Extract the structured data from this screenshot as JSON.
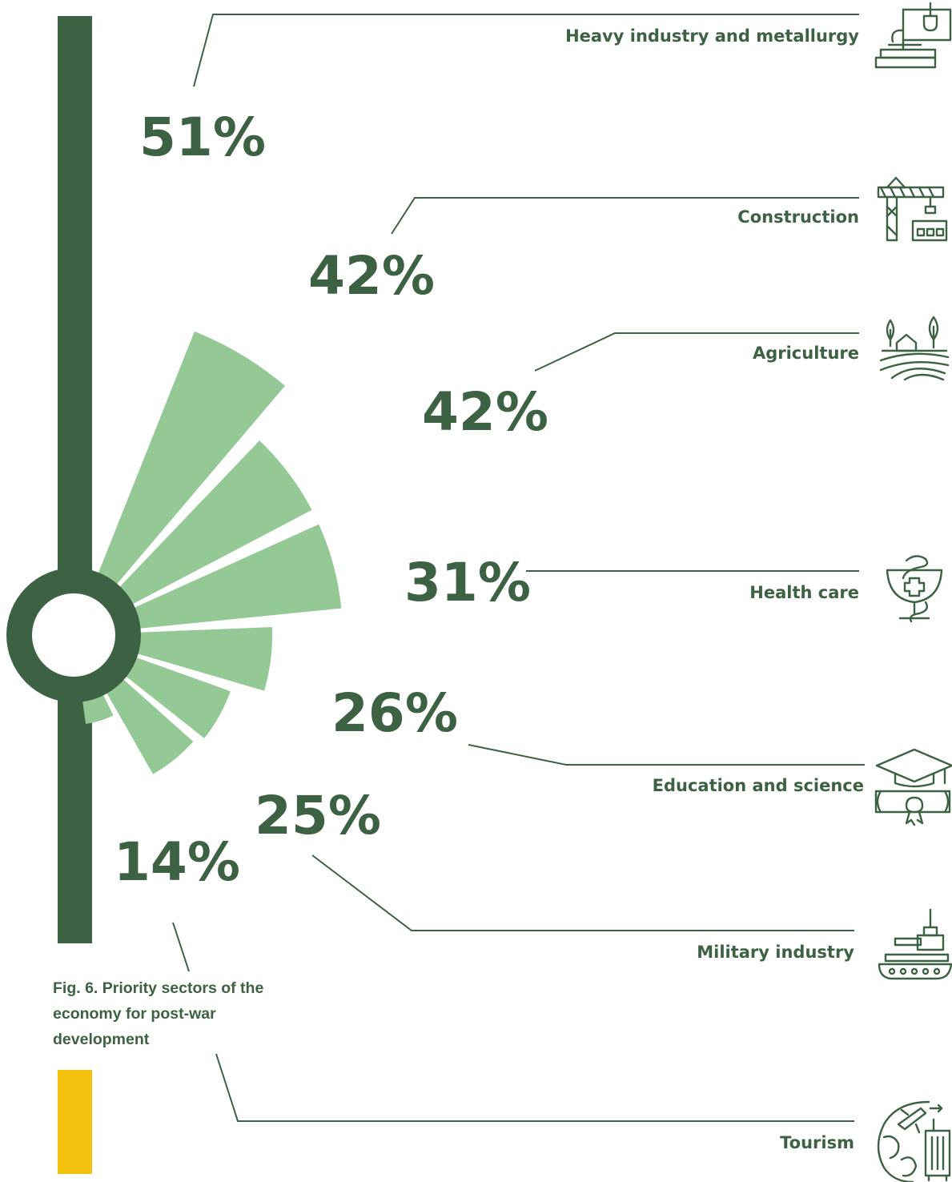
{
  "chart_data": {
    "type": "radial-bar",
    "unit": "%",
    "categories": [
      "Heavy industry and metallurgy",
      "Construction",
      "Agriculture",
      "Health care",
      "Education and science",
      "Military industry",
      "Tourism"
    ],
    "values": [
      51,
      42,
      42,
      31,
      26,
      25,
      14
    ],
    "labels": [
      "51%",
      "42%",
      "42%",
      "31%",
      "26%",
      "25%",
      "14%"
    ],
    "icons": [
      "industry-icon",
      "construction-crane-icon",
      "farm-icon",
      "medical-bowl-icon",
      "graduation-diploma-icon",
      "tank-icon",
      "travel-globe-icon"
    ]
  },
  "caption": "Fig. 6. Priority sectors of the economy for post-war development",
  "colors": {
    "bar": "#94c995",
    "dark": "#3d6143",
    "accent": "#f2c20f"
  }
}
